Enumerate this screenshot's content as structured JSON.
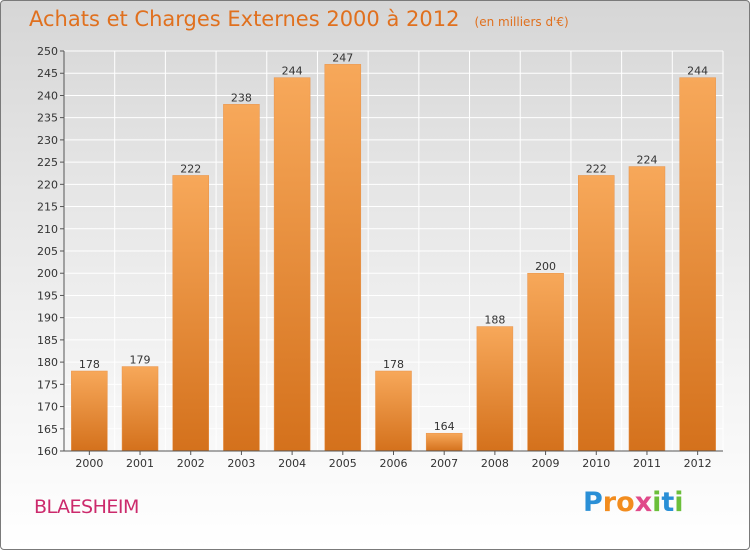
{
  "header": {
    "title": "Achats et Charges Externes 2000 à 2012",
    "subtitle": "(en milliers d'€)"
  },
  "commune": "BLAESHEIM",
  "logo": {
    "letters": [
      "P",
      "r",
      "o",
      "x",
      "i",
      "t",
      "i"
    ],
    "colors": [
      "#2a8fd6",
      "#f28c1e",
      "#f28c1e",
      "#e04a8a",
      "#6bbf3a",
      "#2a8fd6",
      "#6bbf3a"
    ]
  },
  "chart_data": {
    "type": "bar",
    "title": "Achats et Charges Externes 2000 à 2012",
    "subtitle": "(en milliers d'€)",
    "categories": [
      "2000",
      "2001",
      "2002",
      "2003",
      "2004",
      "2005",
      "2006",
      "2007",
      "2008",
      "2009",
      "2010",
      "2011",
      "2012"
    ],
    "values": [
      178,
      179,
      222,
      238,
      244,
      247,
      178,
      164,
      188,
      200,
      222,
      224,
      244
    ],
    "xlabel": "",
    "ylabel": "",
    "ylim": [
      160,
      250
    ],
    "yticks": [
      160,
      165,
      170,
      175,
      180,
      185,
      190,
      195,
      200,
      205,
      210,
      215,
      220,
      225,
      230,
      235,
      240,
      245,
      250
    ],
    "grid": true,
    "colors": {
      "bar_light": "#f7a85a",
      "bar_dark": "#d4711c",
      "grid": "#ffffff",
      "axis": "#555555"
    }
  }
}
